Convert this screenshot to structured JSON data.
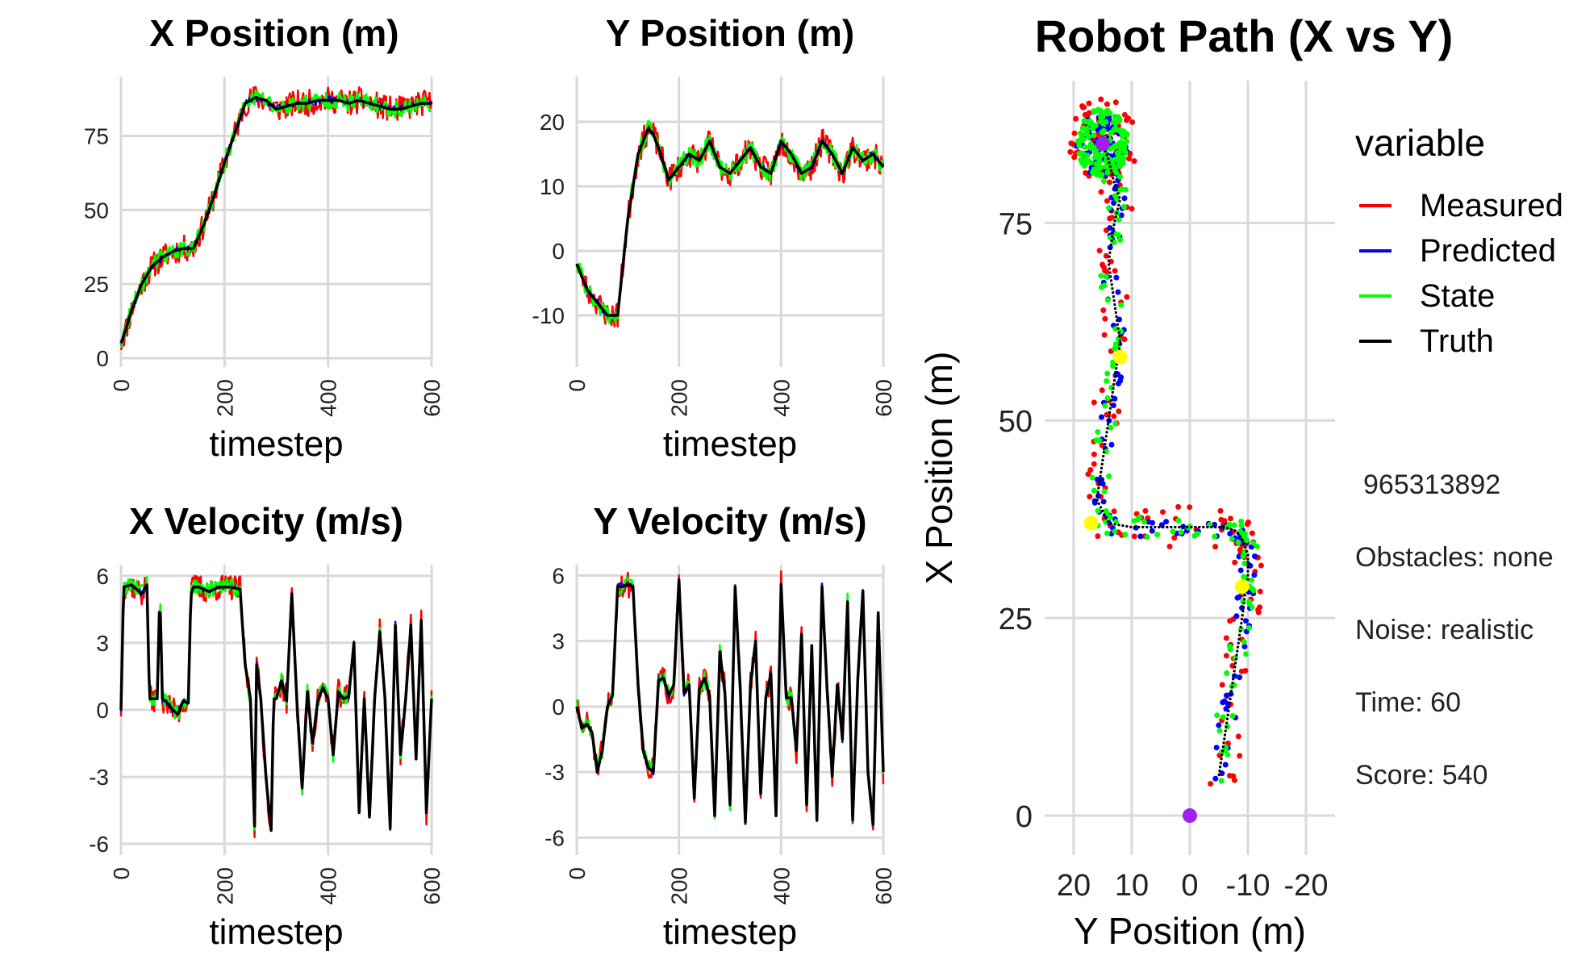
{
  "chart_data": [
    {
      "id": "x_position",
      "type": "line",
      "title": "X Position (m)",
      "xlabel": "timestep",
      "ylabel": "",
      "xlim": [
        0,
        600
      ],
      "ylim": [
        -3,
        95
      ],
      "xticks": [
        0,
        200,
        400,
        600
      ],
      "yticks": [
        0,
        25,
        50,
        75
      ],
      "grid": true,
      "x": [
        0,
        10,
        20,
        40,
        60,
        80,
        100,
        120,
        140,
        160,
        180,
        200,
        220,
        240,
        260,
        280,
        300,
        320,
        340,
        360,
        380,
        400,
        420,
        440,
        460,
        480,
        500,
        520,
        540,
        560,
        580,
        600
      ],
      "series": [
        {
          "name": "Truth",
          "values": [
            5,
            10,
            16,
            25,
            31,
            34,
            36,
            37,
            37,
            45,
            55,
            66,
            76,
            86,
            88,
            87,
            84,
            85,
            86,
            86,
            87,
            87,
            87,
            86,
            87,
            86,
            85,
            84,
            84,
            85,
            86,
            86
          ]
        }
      ]
    },
    {
      "id": "y_position",
      "type": "line",
      "title": "Y Position (m)",
      "xlabel": "timestep",
      "ylabel": "",
      "xlim": [
        0,
        600
      ],
      "ylim": [
        -18,
        27
      ],
      "xticks": [
        0,
        200,
        400,
        600
      ],
      "yticks": [
        -10,
        0,
        10,
        20
      ],
      "grid": true,
      "x": [
        0,
        10,
        20,
        40,
        60,
        80,
        100,
        120,
        140,
        150,
        160,
        180,
        200,
        220,
        240,
        260,
        280,
        300,
        320,
        340,
        360,
        380,
        400,
        420,
        440,
        460,
        480,
        500,
        520,
        540,
        560,
        580,
        600
      ],
      "series": [
        {
          "name": "Truth",
          "values": [
            -2,
            -4,
            -6,
            -8,
            -10,
            -10,
            5,
            15,
            19,
            18,
            16,
            11,
            13,
            15,
            14,
            17,
            13,
            12,
            14,
            16,
            13,
            12,
            17,
            15,
            12,
            13,
            17,
            15,
            12,
            16,
            14,
            15,
            13
          ]
        }
      ]
    },
    {
      "id": "x_velocity",
      "type": "line",
      "title": "X Velocity (m/s)",
      "xlabel": "timestep",
      "ylabel": "",
      "xlim": [
        0,
        600
      ],
      "ylim": [
        -6.5,
        6.5
      ],
      "xticks": [
        0,
        200,
        400,
        600
      ],
      "yticks": [
        -6,
        -3,
        0,
        3,
        6
      ],
      "grid": true,
      "x": [
        0,
        5,
        20,
        40,
        50,
        55,
        60,
        70,
        75,
        80,
        90,
        100,
        110,
        120,
        130,
        135,
        140,
        150,
        170,
        190,
        210,
        230,
        240,
        250,
        258,
        262,
        270,
        280,
        290,
        295,
        300,
        310,
        320,
        330,
        340,
        350,
        360,
        370,
        380,
        390,
        400,
        410,
        420,
        430,
        440,
        450,
        460,
        470,
        480,
        490,
        500,
        510,
        520,
        530,
        540,
        550,
        560,
        570,
        580,
        590,
        600
      ],
      "series": [
        {
          "name": "Truth",
          "values": [
            0,
            5.5,
            5.6,
            5.2,
            5.6,
            0.5,
            0.5,
            0.5,
            5.3,
            0.5,
            0.3,
            0,
            -0.2,
            0.4,
            0.3,
            5.2,
            5.5,
            5.5,
            5.3,
            5.5,
            5.5,
            5.4,
            2,
            0.5,
            -5.2,
            2,
            0.5,
            -3,
            -5.4,
            0.5,
            0.5,
            1.3,
            0.4,
            5.2,
            0.3,
            -3.5,
            0.8,
            -1.5,
            0.4,
            1,
            0.5,
            -2,
            0.8,
            0.5,
            0.6,
            3,
            -4.6,
            0.5,
            -4.8,
            0.5,
            3.5,
            0.5,
            -5.3,
            3.8,
            -2,
            0.5,
            3.8,
            -2.2,
            4,
            -4.6,
            0.5
          ]
        }
      ]
    },
    {
      "id": "y_velocity",
      "type": "line",
      "title": "Y Velocity (m/s)",
      "xlabel": "timestep",
      "ylabel": "",
      "xlim": [
        0,
        600
      ],
      "ylim": [
        -6.8,
        6.5
      ],
      "xticks": [
        0,
        200,
        400,
        600
      ],
      "yticks": [
        -6,
        -3,
        0,
        3,
        6
      ],
      "grid": true,
      "x": [
        0,
        10,
        20,
        30,
        40,
        50,
        60,
        70,
        80,
        90,
        100,
        110,
        120,
        130,
        140,
        150,
        160,
        170,
        180,
        190,
        200,
        210,
        220,
        230,
        240,
        250,
        260,
        270,
        280,
        290,
        300,
        310,
        320,
        330,
        340,
        350,
        360,
        370,
        380,
        390,
        400,
        410,
        420,
        430,
        440,
        450,
        460,
        470,
        480,
        490,
        500,
        510,
        520,
        530,
        540,
        550,
        560,
        570,
        580,
        590,
        600
      ],
      "series": [
        {
          "name": "Truth",
          "values": [
            0,
            -1,
            -0.8,
            -1.2,
            -3,
            -2,
            0,
            0.5,
            5.5,
            5.5,
            5.6,
            5.5,
            1,
            -2,
            -2.8,
            -3,
            1.2,
            1.3,
            0.5,
            1,
            5.8,
            0.6,
            1,
            -4.2,
            0.8,
            1.3,
            0.5,
            -5,
            2.5,
            0.6,
            -4.5,
            5.5,
            0.8,
            -5.3,
            1,
            3,
            -4,
            0.4,
            1.5,
            -5,
            5.6,
            0.4,
            0.4,
            -2,
            3.3,
            -4.5,
            2.8,
            -5.2,
            5.5,
            0.8,
            -3.2,
            1,
            -1.5,
            4.8,
            -5.2,
            1.2,
            5.3,
            -3,
            -5.4,
            4.3,
            -3
          ]
        }
      ]
    },
    {
      "id": "robot_path",
      "type": "line",
      "title": "Robot Path (X vs Y)",
      "xlabel": "Y Position (m)",
      "ylabel": "X Position (m)",
      "xlim": [
        25,
        -25
      ],
      "ylim": [
        -5,
        93
      ],
      "x_reversed": true,
      "xticks": [
        20,
        10,
        0,
        -10,
        -20
      ],
      "yticks": [
        0,
        25,
        50,
        75
      ],
      "grid": true,
      "legend": {
        "title": "variable",
        "position": "right",
        "entries": [
          "Measured",
          "Predicted",
          "State",
          "Truth"
        ]
      },
      "series_colors": {
        "Measured": "#ff0000",
        "Predicted": "#0000ff",
        "State": "#00ff00",
        "Truth": "#000000"
      },
      "path": {
        "name": "Truth",
        "y_position": [
          -5,
          -6,
          -7,
          -8,
          -9,
          -9.5,
          -10,
          -10,
          -9,
          -8,
          -6,
          0,
          6,
          10,
          14,
          16,
          15,
          14,
          13,
          12,
          13,
          14,
          13,
          12,
          13,
          14,
          15,
          14
        ],
        "x_position": [
          5,
          10,
          15,
          20,
          25,
          28,
          30,
          33,
          35,
          36,
          36.5,
          36.5,
          36.5,
          36.5,
          37,
          40,
          45,
          50,
          55,
          60,
          65,
          70,
          75,
          78,
          80,
          83,
          85,
          86
        ]
      },
      "markers": [
        {
          "y_position": 0,
          "x_position": 0,
          "color": "#a020f0"
        },
        {
          "y_position": 15,
          "x_position": 85,
          "color": "#a020f0"
        },
        {
          "y_position": 12,
          "x_position": 58,
          "color": "#ffff00"
        },
        {
          "y_position": 17,
          "x_position": 37,
          "color": "#ffff00"
        },
        {
          "y_position": -9,
          "x_position": 29,
          "color": "#ffff00"
        }
      ]
    }
  ],
  "info": {
    "seed": "965313892",
    "obstacles": "Obstacles: none",
    "noise": "Noise: realistic",
    "time": "Time: 60",
    "score": "Score: 540"
  }
}
